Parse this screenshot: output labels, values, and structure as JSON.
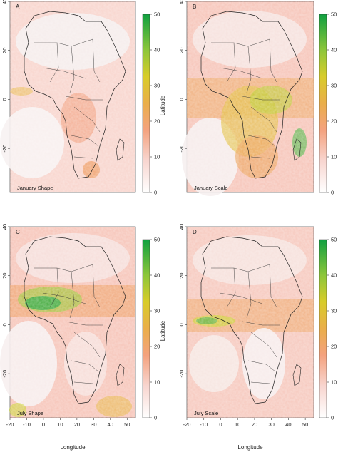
{
  "figure": {
    "x_axis_label": "Longitude",
    "y_axis_label": "Latitude",
    "lon_ticks": [
      -20,
      -10,
      0,
      10,
      20,
      30,
      40,
      50
    ],
    "lat_ticks": [
      -20,
      0,
      20,
      40
    ],
    "lon_range": [
      -20,
      55
    ],
    "lat_range": [
      -38,
      40
    ],
    "colorbar": {
      "ticks": [
        0,
        10,
        20,
        30,
        40,
        50
      ],
      "colors": [
        "#ffffff",
        "#f6bdb4",
        "#f29a6e",
        "#e8b640",
        "#c9d52a",
        "#18a43c"
      ]
    }
  },
  "panels": [
    {
      "letter": "A",
      "title": "January Shape",
      "intensity": "low"
    },
    {
      "letter": "B",
      "title": "January Scale",
      "intensity": "high"
    },
    {
      "letter": "C",
      "title": "July Shape",
      "intensity": "high-north"
    },
    {
      "letter": "D",
      "title": "July Scale",
      "intensity": "medium"
    }
  ]
}
